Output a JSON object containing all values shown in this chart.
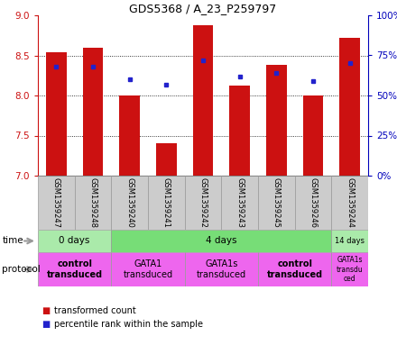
{
  "title": "GDS5368 / A_23_P259797",
  "samples": [
    "GSM1359247",
    "GSM1359248",
    "GSM1359240",
    "GSM1359241",
    "GSM1359242",
    "GSM1359243",
    "GSM1359245",
    "GSM1359246",
    "GSM1359244"
  ],
  "bar_values": [
    8.54,
    8.6,
    8.0,
    7.4,
    8.88,
    8.12,
    8.38,
    8.0,
    8.72
  ],
  "dot_percentiles": [
    68,
    68,
    60,
    57,
    72,
    62,
    64,
    59,
    70
  ],
  "ylim_left": [
    7.0,
    9.0
  ],
  "ylim_right": [
    0,
    100
  ],
  "yticks_left": [
    7.0,
    7.5,
    8.0,
    8.5,
    9.0
  ],
  "yticks_right": [
    0,
    25,
    50,
    75,
    100
  ],
  "bar_color": "#CC1111",
  "dot_color": "#2222CC",
  "bar_width": 0.55,
  "time_groups": [
    {
      "label": "0 days",
      "start": 0,
      "end": 2,
      "color": "#AAEAAA"
    },
    {
      "label": "4 days",
      "start": 2,
      "end": 8,
      "color": "#77DD77"
    },
    {
      "label": "14 days",
      "start": 8,
      "end": 9,
      "color": "#AAEAAA"
    }
  ],
  "protocol_groups": [
    {
      "label": "control\ntransduced",
      "start": 0,
      "end": 2,
      "color": "#EE66EE",
      "bold": true
    },
    {
      "label": "GATA1\ntransduced",
      "start": 2,
      "end": 4,
      "color": "#EE66EE",
      "bold": false
    },
    {
      "label": "GATA1s\ntransduced",
      "start": 4,
      "end": 6,
      "color": "#EE66EE",
      "bold": false
    },
    {
      "label": "control\ntransduced",
      "start": 6,
      "end": 8,
      "color": "#EE66EE",
      "bold": true
    },
    {
      "label": "GATA1s\ntransdu\nced",
      "start": 8,
      "end": 9,
      "color": "#EE66EE",
      "bold": false
    }
  ],
  "legend_items": [
    {
      "label": "transformed count",
      "color": "#CC1111"
    },
    {
      "label": "percentile rank within the sample",
      "color": "#2222CC"
    }
  ],
  "left_axis_color": "#CC1111",
  "right_axis_color": "#0000BB",
  "sample_bg_color": "#CCCCCC",
  "fig_width": 4.4,
  "fig_height": 3.93,
  "dpi": 100
}
